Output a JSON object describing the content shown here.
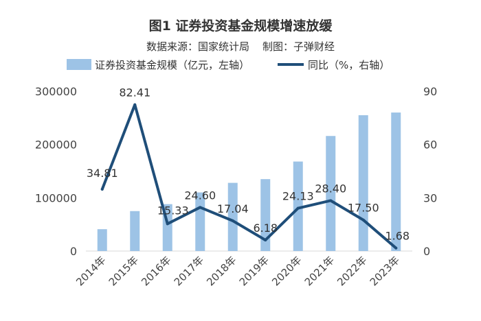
{
  "chart_data": {
    "type": "bar+line",
    "title": "图1 证券投资基金规模增速放缓",
    "subtitle": "数据来源：国家统计局    制图：子弹财经",
    "categories": [
      "2014年",
      "2015年",
      "2016年",
      "2017年",
      "2018年",
      "2019年",
      "2020年",
      "2021年",
      "2022年",
      "2023年"
    ],
    "series": [
      {
        "name": "证券投资基金规模（亿元，左轴）",
        "type": "bar",
        "axis": "left",
        "color": "#9dc3e6",
        "values": [
          41000,
          75000,
          88000,
          110000,
          128000,
          135000,
          168000,
          216000,
          255000,
          260000
        ]
      },
      {
        "name": "同比（%，右轴）",
        "type": "line",
        "axis": "right",
        "color": "#1f4e79",
        "values": [
          34.81,
          82.41,
          15.33,
          24.6,
          17.04,
          6.18,
          24.13,
          28.4,
          17.5,
          1.68
        ],
        "labels": [
          "34.81",
          "82.41",
          "15.33",
          "24.60",
          "17.04",
          "6.18",
          "24.13",
          "28.40",
          "17.50",
          "1.68"
        ]
      }
    ],
    "y_left": {
      "min": 0,
      "max": 300000,
      "ticks": [
        "0",
        "100000",
        "200000",
        "300000"
      ]
    },
    "y_right": {
      "min": 0,
      "max": 90,
      "ticks": [
        "0",
        "30",
        "60",
        "90"
      ]
    },
    "legend_position": "top",
    "grid": false
  }
}
